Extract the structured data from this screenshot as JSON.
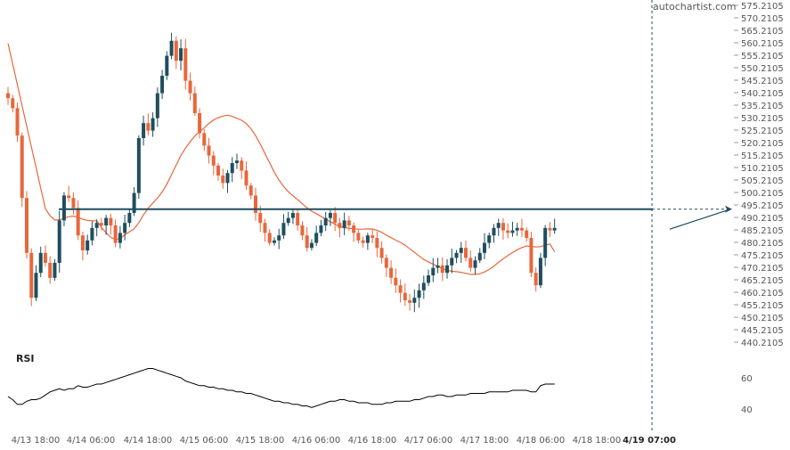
{
  "brand": "autochartist.com",
  "colors": {
    "up": "#1f4e5f",
    "down": "#e8673c",
    "ma": "#e8673c",
    "level": "#1f4e5f",
    "text": "#555555",
    "rsi": "#000000"
  },
  "chart_data": {
    "type": "candlestick",
    "price_axis": {
      "range": [
        440.2105,
        575.2105
      ],
      "tick_step": 5,
      "ticks": [
        "440.2105",
        "445.2105",
        "450.2105",
        "455.2105",
        "460.2105",
        "465.2105",
        "470.2105",
        "475.2105",
        "480.2105",
        "485.2105",
        "490.2105",
        "495.2105",
        "500.2105",
        "505.2105",
        "510.2105",
        "515.2105",
        "520.2105",
        "525.2105",
        "530.2105",
        "535.2105",
        "540.2105",
        "545.2105",
        "550.2105",
        "555.2105",
        "560.2105",
        "565.2105",
        "570.2105",
        "575.2105"
      ]
    },
    "time_axis": {
      "start": "2024-04-13 18:00",
      "bar_interval_hours": 1,
      "labels": [
        "4/13 18:00",
        "4/14 06:00",
        "4/14 18:00",
        "4/15 06:00",
        "4/15 18:00",
        "4/16 06:00",
        "4/16 18:00",
        "4/17 06:00",
        "4/17 18:00",
        "4/18 06:00",
        "4/18 18:00",
        "4/19 07:00"
      ],
      "highlight_label": "4/19 07:00"
    },
    "resistance_level": 493.5,
    "projection": {
      "from_time": "2024-04-19 11:00",
      "from_price": 485.5,
      "to_time": "2024-04-19 23:00",
      "to_price": 493.5
    },
    "candles_closes": [
      538,
      534,
      523,
      498,
      476,
      458,
      468,
      476,
      472,
      466,
      472,
      489,
      499,
      498,
      494,
      483,
      477,
      481,
      486,
      488,
      487,
      490,
      487,
      480,
      484,
      488,
      492,
      500,
      522,
      528,
      525,
      530,
      540,
      547,
      555,
      561,
      553,
      558,
      545,
      540,
      532,
      524,
      519,
      515,
      511,
      507,
      504,
      508,
      512,
      513,
      509,
      503,
      499,
      492,
      488,
      484,
      480,
      481,
      483,
      488,
      490,
      492,
      487,
      483,
      478,
      480,
      484,
      487,
      490,
      492,
      488,
      486,
      489,
      487,
      484,
      481,
      480,
      483,
      482,
      478,
      474,
      470,
      466,
      463,
      460,
      457,
      456,
      458,
      461,
      464,
      467,
      470,
      471,
      468,
      471,
      474,
      476,
      478,
      474,
      470,
      473,
      476,
      480,
      483,
      486,
      488,
      485,
      484,
      485,
      486,
      485,
      482,
      468,
      463,
      474,
      486,
      485,
      486
    ],
    "moving_average": {
      "start_value": 560,
      "end_value": 476.5,
      "min_value": 473.5
    },
    "rsi": {
      "label": "RSI",
      "ticks": [
        40,
        60
      ],
      "values": [
        48,
        46,
        43,
        43,
        45,
        46,
        46,
        47,
        49,
        51,
        52,
        53,
        52,
        53,
        53,
        55,
        54,
        54,
        55,
        56,
        56,
        57,
        58,
        59,
        60,
        61,
        62,
        63,
        64,
        65,
        66,
        66,
        65,
        64,
        63,
        62,
        61,
        60,
        58,
        57,
        56,
        55,
        55,
        54,
        54,
        53,
        53,
        52,
        52,
        51,
        51,
        50,
        50,
        49,
        48,
        47,
        46,
        45,
        45,
        44,
        44,
        43,
        43,
        42,
        42,
        41,
        42,
        43,
        44,
        45,
        45,
        46,
        46,
        45,
        45,
        44,
        44,
        44,
        43,
        43,
        43,
        44,
        44,
        45,
        45,
        45,
        45,
        46,
        46,
        47,
        48,
        48,
        49,
        49,
        48,
        48,
        49,
        49,
        49,
        50,
        50,
        50,
        50,
        51,
        51,
        51,
        51,
        51,
        52,
        52,
        52,
        52,
        51,
        51,
        55,
        56,
        56,
        56
      ]
    }
  }
}
